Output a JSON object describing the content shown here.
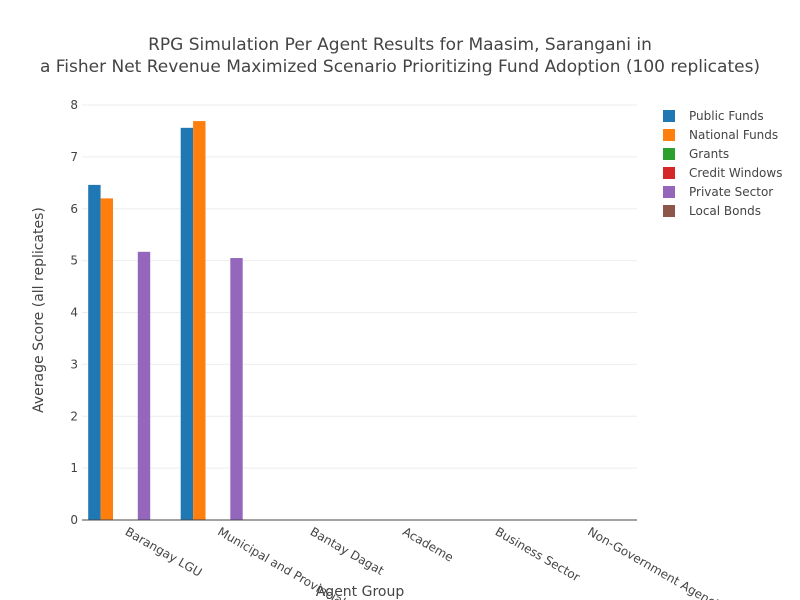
{
  "chart_data": {
    "type": "bar",
    "title_line1": "RPG Simulation Per Agent Results for Maasim, Sarangani in",
    "title_line2": "a Fisher Net Revenue Maximized Scenario Prioritizing Fund Adoption (100 replicates)",
    "xlabel": "Agent Group",
    "ylabel": "Average Score (all replicates)",
    "ylim": [
      0,
      8
    ],
    "yticks": [
      0,
      1,
      2,
      3,
      4,
      5,
      6,
      7,
      8
    ],
    "grid": true,
    "legend_position": "top-right",
    "categories": [
      "Barangay LGU",
      "Municipal and Provincial",
      "Bantay Dagat",
      "Academe",
      "Business Sector",
      "Non-Government Agencies"
    ],
    "series": [
      {
        "name": "Public Funds",
        "color": "#1f77b4",
        "values": [
          6.46,
          7.56,
          null,
          null,
          null,
          null
        ]
      },
      {
        "name": "National Funds",
        "color": "#ff7f0e",
        "values": [
          6.2,
          7.69,
          null,
          null,
          null,
          null
        ]
      },
      {
        "name": "Grants",
        "color": "#2ca02c",
        "values": [
          null,
          null,
          null,
          null,
          null,
          null
        ]
      },
      {
        "name": "Credit Windows",
        "color": "#d62728",
        "values": [
          null,
          null,
          null,
          null,
          null,
          null
        ]
      },
      {
        "name": "Private Sector",
        "color": "#9467bd",
        "values": [
          5.17,
          5.05,
          null,
          null,
          null,
          null
        ]
      },
      {
        "name": "Local Bonds",
        "color": "#8c564b",
        "values": [
          null,
          null,
          null,
          null,
          null,
          null
        ]
      }
    ]
  }
}
